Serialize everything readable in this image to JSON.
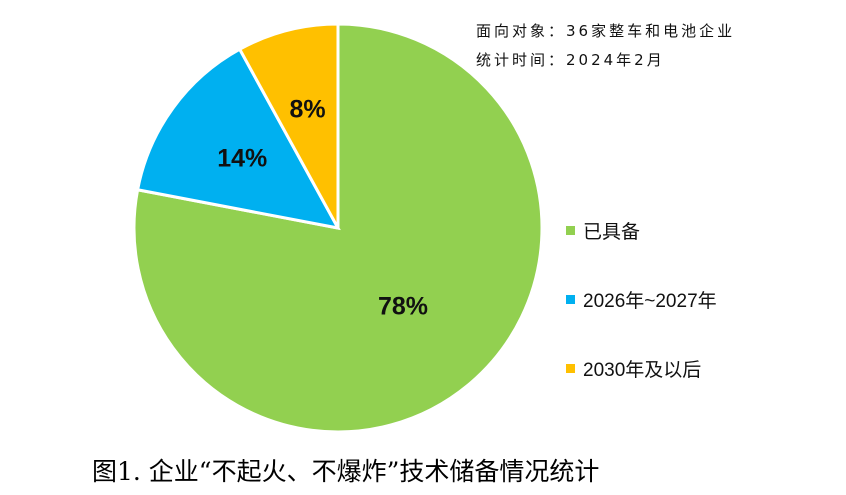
{
  "info": {
    "target": "面向对象：36家整车和电池企业",
    "time": "统计时间：2024年2月"
  },
  "caption": "图1. 企业“不起火、不爆炸”技术储备情况统计",
  "chart_data": {
    "type": "pie",
    "legend_position": "right",
    "slices": [
      {
        "label": "已具备",
        "value": 78,
        "display": "78%",
        "color": "#92D050"
      },
      {
        "label": "2026年~2027年",
        "value": 14,
        "display": "14%",
        "color": "#00B0F0"
      },
      {
        "label": "2030年及以后",
        "value": 8,
        "display": "8%",
        "color": "#FFC000"
      }
    ]
  }
}
